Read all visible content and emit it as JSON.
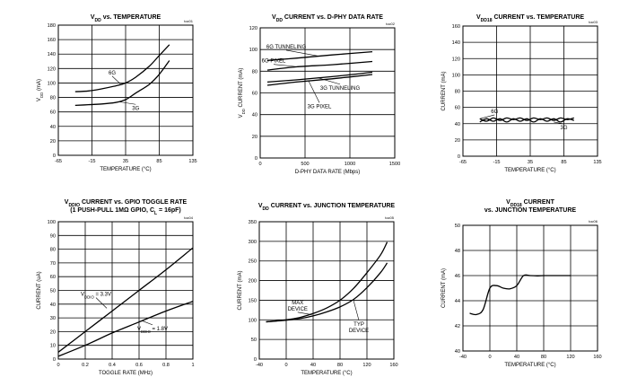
{
  "chart_data": [
    {
      "id": "c1",
      "type": "line",
      "tag": "toc01",
      "title_lines": [
        [
          {
            "t": "V"
          },
          {
            "t": "DD",
            "sub": true
          },
          {
            "t": " vs. TEMPERATURE"
          }
        ]
      ],
      "xlabel": [
        {
          "t": "TEMPERATURE (°C)"
        }
      ],
      "ylabel": [
        {
          "t": "V"
        },
        {
          "t": "DD",
          "sub": true
        },
        {
          "t": " (mA)"
        }
      ],
      "xlim": [
        -65,
        135
      ],
      "ylim": [
        0,
        180
      ],
      "xticks": [
        "-65",
        "-15",
        "35",
        "85",
        "135"
      ],
      "yticks": [
        "0",
        "20",
        "40",
        "60",
        "80",
        "100",
        "120",
        "140",
        "160",
        "180"
      ],
      "series": [
        {
          "points": [
            [
              -40,
              88
            ],
            [
              -20,
              89
            ],
            [
              0,
              92
            ],
            [
              20,
              96
            ],
            [
              35,
              100
            ],
            [
              50,
              108
            ],
            [
              70,
              123
            ],
            [
              85,
              138
            ],
            [
              100,
              153
            ]
          ]
        },
        {
          "points": [
            [
              -40,
              69
            ],
            [
              -20,
              70
            ],
            [
              0,
              71
            ],
            [
              20,
              73
            ],
            [
              35,
              77
            ],
            [
              50,
              86
            ],
            [
              70,
              98
            ],
            [
              85,
              112
            ],
            [
              100,
              131
            ]
          ]
        }
      ],
      "annotations": [
        {
          "text": "6G",
          "x": 15,
          "y": 112,
          "to": [
            27,
            99
          ]
        },
        {
          "text": "3G",
          "x": 50,
          "y": 63,
          "to": [
            25,
            74
          ]
        }
      ]
    },
    {
      "id": "c2",
      "type": "line",
      "tag": "toc02",
      "title_lines": [
        [
          {
            "t": "V"
          },
          {
            "t": "DD",
            "sub": true
          },
          {
            "t": " CURRENT vs. D-PHY DATA RATE"
          }
        ]
      ],
      "xlabel": [
        {
          "t": "D-PHY DATA RATE (Mbps)"
        }
      ],
      "ylabel": [
        {
          "t": "V"
        },
        {
          "t": "DD",
          "sub": true
        },
        {
          "t": " CURRENT (mA)"
        }
      ],
      "xlim": [
        0,
        1500
      ],
      "ylim": [
        0,
        120
      ],
      "xticks": [
        "0",
        "500",
        "1000",
        "1500"
      ],
      "yticks": [
        "0",
        "20",
        "40",
        "60",
        "80",
        "100",
        "120"
      ],
      "series": [
        {
          "points": [
            [
              80,
              90
            ],
            [
              400,
              92
            ],
            [
              800,
              95
            ],
            [
              1250,
              98
            ]
          ]
        },
        {
          "points": [
            [
              80,
              81
            ],
            [
              400,
              84
            ],
            [
              800,
              86
            ],
            [
              1250,
              89
            ]
          ]
        },
        {
          "points": [
            [
              80,
              70
            ],
            [
              400,
              72
            ],
            [
              800,
              75
            ],
            [
              1250,
              79
            ]
          ]
        },
        {
          "points": [
            [
              80,
              67
            ],
            [
              400,
              70
            ],
            [
              800,
              73
            ],
            [
              1250,
              77
            ]
          ]
        }
      ],
      "annotations": [
        {
          "text": "6G TUNNELING",
          "x": 290,
          "y": 101,
          "to": [
            650,
            94
          ]
        },
        {
          "text": "6G PIXEL",
          "x": 150,
          "y": 88,
          "to": [
            430,
            84
          ]
        },
        {
          "text": "3G TUNNELING",
          "x": 890,
          "y": 63,
          "to": [
            640,
            74
          ]
        },
        {
          "text": "3G PIXEL",
          "x": 660,
          "y": 46,
          "to": [
            540,
            71
          ]
        }
      ]
    },
    {
      "id": "c3",
      "type": "line",
      "tag": "toc03",
      "title_lines": [
        [
          {
            "t": "V"
          },
          {
            "t": "DD18",
            "sub": true
          },
          {
            "t": " CURRENT vs. TEMPERATURE"
          }
        ]
      ],
      "xlabel": [
        {
          "t": "TEMPERATURE (°C)"
        }
      ],
      "ylabel": [
        {
          "t": "CURRENT (mA)"
        }
      ],
      "xlim": [
        -65,
        135
      ],
      "ylim": [
        0,
        160
      ],
      "xticks": [
        "-65",
        "-15",
        "35",
        "85",
        "135"
      ],
      "yticks": [
        "0",
        "20",
        "40",
        "60",
        "80",
        "100",
        "120",
        "140",
        "160"
      ],
      "series": [
        {
          "points": [
            [
              -40,
              46
            ],
            [
              -30,
              43
            ],
            [
              -20,
              47
            ],
            [
              -10,
              44
            ],
            [
              0,
              47
            ],
            [
              10,
              45
            ],
            [
              20,
              47
            ],
            [
              30,
              44
            ],
            [
              40,
              47
            ],
            [
              50,
              45
            ],
            [
              60,
              47
            ],
            [
              70,
              44
            ],
            [
              80,
              47
            ],
            [
              90,
              45
            ],
            [
              100,
              47
            ]
          ]
        },
        {
          "points": [
            [
              -40,
              42
            ],
            [
              -30,
              46
            ],
            [
              -20,
              43
            ],
            [
              -10,
              46
            ],
            [
              0,
              42
            ],
            [
              10,
              46
            ],
            [
              20,
              43
            ],
            [
              30,
              46
            ],
            [
              40,
              42
            ],
            [
              50,
              46
            ],
            [
              60,
              43
            ],
            [
              70,
              46
            ],
            [
              80,
              42
            ],
            [
              90,
              46
            ],
            [
              100,
              44
            ]
          ]
        }
      ],
      "annotations": [
        {
          "text": "6G",
          "x": -18,
          "y": 53,
          "to": [
            -40,
            46
          ]
        },
        {
          "text": "3G",
          "x": 85,
          "y": 33,
          "to": [
            70,
            42
          ]
        }
      ]
    },
    {
      "id": "c4",
      "type": "line",
      "tag": "toc04",
      "title_lines": [
        [
          {
            "t": "V"
          },
          {
            "t": "DDIO",
            "sub": true
          },
          {
            "t": " CURRENT vs. GPIO TOGGLE RATE"
          }
        ],
        [
          {
            "t": "(1 PUSH-PULL 1MΩ GPIO, C"
          },
          {
            "t": "L",
            "sub": true
          },
          {
            "t": " = 16pF)"
          }
        ]
      ],
      "xlabel": [
        {
          "t": "TOGGLE RATE (MHz)"
        }
      ],
      "ylabel": [
        {
          "t": "CURRENT (uA)"
        }
      ],
      "xlim": [
        0,
        1
      ],
      "ylim": [
        0,
        100
      ],
      "xticks": [
        "0",
        "0.2",
        "0.4",
        "0.6",
        "0.8",
        "1"
      ],
      "yticks": [
        "0",
        "10",
        "20",
        "30",
        "40",
        "50",
        "60",
        "70",
        "80",
        "90",
        "100"
      ],
      "series": [
        {
          "points": [
            [
              0,
              5
            ],
            [
              0.2,
              20
            ],
            [
              0.4,
              35
            ],
            [
              0.6,
              50
            ],
            [
              0.8,
              65
            ],
            [
              1,
              81
            ]
          ]
        },
        {
          "points": [
            [
              0,
              2
            ],
            [
              0.2,
              10
            ],
            [
              0.4,
              19
            ],
            [
              0.6,
              27
            ],
            [
              0.8,
              35
            ],
            [
              1,
              42
            ]
          ]
        }
      ],
      "annotations": [
        {
          "text": [
            {
              "t": "V"
            },
            {
              "t": "DDIO",
              "sub": true
            },
            {
              "t": " = 3.3V"
            }
          ],
          "x": 0.28,
          "y": 46,
          "to": [
            0.36,
            37
          ]
        },
        {
          "text": [
            {
              "t": "V"
            },
            {
              "t": "DDIO",
              "sub": true
            },
            {
              "t": " = 1.8V"
            }
          ],
          "x": 0.7,
          "y": 21,
          "to": [
            0.62,
            28
          ]
        }
      ]
    },
    {
      "id": "c5",
      "type": "line",
      "tag": "toc05",
      "title_lines": [
        [
          {
            "t": "V"
          },
          {
            "t": "DD",
            "sub": true
          },
          {
            "t": " CURRENT vs. JUNCTION TEMPERATURE"
          }
        ]
      ],
      "xlabel": [
        {
          "t": "TEMPERATURE (°C)"
        }
      ],
      "ylabel": [
        {
          "t": "CURRENT (mA)"
        }
      ],
      "xlim": [
        -40,
        160
      ],
      "ylim": [
        0,
        350
      ],
      "xticks": [
        "-40",
        "0",
        "40",
        "80",
        "120",
        "160"
      ],
      "yticks": [
        "0",
        "50",
        "100",
        "150",
        "200",
        "250",
        "300",
        "350"
      ],
      "series": [
        {
          "points": [
            [
              -30,
              95
            ],
            [
              0,
              100
            ],
            [
              20,
              106
            ],
            [
              40,
              116
            ],
            [
              60,
              130
            ],
            [
              80,
              150
            ],
            [
              100,
              180
            ],
            [
              120,
              220
            ],
            [
              140,
              265
            ],
            [
              150,
              298
            ]
          ]
        },
        {
          "points": [
            [
              -30,
              95
            ],
            [
              0,
              99
            ],
            [
              20,
              103
            ],
            [
              40,
              110
            ],
            [
              60,
              120
            ],
            [
              80,
              133
            ],
            [
              100,
              152
            ],
            [
              120,
              182
            ],
            [
              140,
              220
            ],
            [
              150,
              245
            ]
          ]
        }
      ],
      "annotations": [
        {
          "text": [
            "MAX",
            "DEVICE"
          ],
          "x": 17,
          "y": 140,
          "to": [
            38,
            113
          ]
        },
        {
          "text": [
            "TYP",
            "DEVICE"
          ],
          "x": 108,
          "y": 85,
          "to": [
            100,
            150
          ]
        }
      ]
    },
    {
      "id": "c6",
      "type": "line",
      "tag": "toc06",
      "title_lines": [
        [
          {
            "t": "V"
          },
          {
            "t": "DD18",
            "sub": true
          },
          {
            "t": " CURRENT"
          }
        ],
        [
          {
            "t": "vs. JUNCTION TEMPERATURE"
          }
        ]
      ],
      "xlabel": [
        {
          "t": "TEMPERATURE (°C)"
        }
      ],
      "ylabel": [
        {
          "t": "CURRENT (mA)"
        }
      ],
      "xlim": [
        -40,
        160
      ],
      "ylim": [
        40,
        50
      ],
      "xticks": [
        "-40",
        "0",
        "40",
        "80",
        "120",
        "160"
      ],
      "yticks": [
        "40",
        "42",
        "44",
        "46",
        "48",
        "50"
      ],
      "series": [
        {
          "points": [
            [
              -30,
              43
            ],
            [
              -20,
              42.9
            ],
            [
              -10,
              43.3
            ],
            [
              0,
              45
            ],
            [
              10,
              45.2
            ],
            [
              20,
              45
            ],
            [
              30,
              44.95
            ],
            [
              40,
              45.2
            ],
            [
              50,
              46
            ],
            [
              60,
              46
            ],
            [
              70,
              45.98
            ],
            [
              80,
              46
            ],
            [
              100,
              46
            ],
            [
              120,
              46
            ]
          ]
        }
      ],
      "annotations": []
    }
  ]
}
